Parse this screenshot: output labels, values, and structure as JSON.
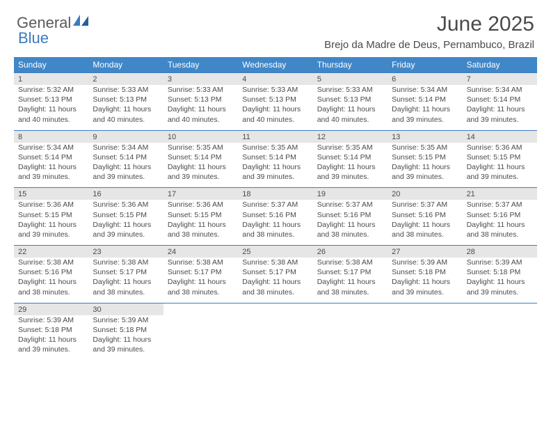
{
  "logo": {
    "part1": "General",
    "part2": "Blue"
  },
  "title": "June 2025",
  "subtitle": "Brejo da Madre de Deus, Pernambuco, Brazil",
  "colors": {
    "header_bg": "#4087c8",
    "header_text": "#ffffff",
    "cell_border": "#3b7bbf",
    "daynum_bg": "#e6e6e6",
    "body_text": "#4a4a4a",
    "logo_gray": "#5a5a5a",
    "logo_blue": "#3b7bbf",
    "background": "#ffffff"
  },
  "layout": {
    "columns": 7,
    "rows": 5,
    "header_fontsize": 12,
    "daynum_fontsize": 11,
    "body_fontsize": 10.5
  },
  "weekdays": [
    "Sunday",
    "Monday",
    "Tuesday",
    "Wednesday",
    "Thursday",
    "Friday",
    "Saturday"
  ],
  "days": [
    {
      "n": "1",
      "sunrise": "Sunrise: 5:32 AM",
      "sunset": "Sunset: 5:13 PM",
      "daylight": "Daylight: 11 hours and 40 minutes."
    },
    {
      "n": "2",
      "sunrise": "Sunrise: 5:33 AM",
      "sunset": "Sunset: 5:13 PM",
      "daylight": "Daylight: 11 hours and 40 minutes."
    },
    {
      "n": "3",
      "sunrise": "Sunrise: 5:33 AM",
      "sunset": "Sunset: 5:13 PM",
      "daylight": "Daylight: 11 hours and 40 minutes."
    },
    {
      "n": "4",
      "sunrise": "Sunrise: 5:33 AM",
      "sunset": "Sunset: 5:13 PM",
      "daylight": "Daylight: 11 hours and 40 minutes."
    },
    {
      "n": "5",
      "sunrise": "Sunrise: 5:33 AM",
      "sunset": "Sunset: 5:13 PM",
      "daylight": "Daylight: 11 hours and 40 minutes."
    },
    {
      "n": "6",
      "sunrise": "Sunrise: 5:34 AM",
      "sunset": "Sunset: 5:14 PM",
      "daylight": "Daylight: 11 hours and 39 minutes."
    },
    {
      "n": "7",
      "sunrise": "Sunrise: 5:34 AM",
      "sunset": "Sunset: 5:14 PM",
      "daylight": "Daylight: 11 hours and 39 minutes."
    },
    {
      "n": "8",
      "sunrise": "Sunrise: 5:34 AM",
      "sunset": "Sunset: 5:14 PM",
      "daylight": "Daylight: 11 hours and 39 minutes."
    },
    {
      "n": "9",
      "sunrise": "Sunrise: 5:34 AM",
      "sunset": "Sunset: 5:14 PM",
      "daylight": "Daylight: 11 hours and 39 minutes."
    },
    {
      "n": "10",
      "sunrise": "Sunrise: 5:35 AM",
      "sunset": "Sunset: 5:14 PM",
      "daylight": "Daylight: 11 hours and 39 minutes."
    },
    {
      "n": "11",
      "sunrise": "Sunrise: 5:35 AM",
      "sunset": "Sunset: 5:14 PM",
      "daylight": "Daylight: 11 hours and 39 minutes."
    },
    {
      "n": "12",
      "sunrise": "Sunrise: 5:35 AM",
      "sunset": "Sunset: 5:14 PM",
      "daylight": "Daylight: 11 hours and 39 minutes."
    },
    {
      "n": "13",
      "sunrise": "Sunrise: 5:35 AM",
      "sunset": "Sunset: 5:15 PM",
      "daylight": "Daylight: 11 hours and 39 minutes."
    },
    {
      "n": "14",
      "sunrise": "Sunrise: 5:36 AM",
      "sunset": "Sunset: 5:15 PM",
      "daylight": "Daylight: 11 hours and 39 minutes."
    },
    {
      "n": "15",
      "sunrise": "Sunrise: 5:36 AM",
      "sunset": "Sunset: 5:15 PM",
      "daylight": "Daylight: 11 hours and 39 minutes."
    },
    {
      "n": "16",
      "sunrise": "Sunrise: 5:36 AM",
      "sunset": "Sunset: 5:15 PM",
      "daylight": "Daylight: 11 hours and 39 minutes."
    },
    {
      "n": "17",
      "sunrise": "Sunrise: 5:36 AM",
      "sunset": "Sunset: 5:15 PM",
      "daylight": "Daylight: 11 hours and 38 minutes."
    },
    {
      "n": "18",
      "sunrise": "Sunrise: 5:37 AM",
      "sunset": "Sunset: 5:16 PM",
      "daylight": "Daylight: 11 hours and 38 minutes."
    },
    {
      "n": "19",
      "sunrise": "Sunrise: 5:37 AM",
      "sunset": "Sunset: 5:16 PM",
      "daylight": "Daylight: 11 hours and 38 minutes."
    },
    {
      "n": "20",
      "sunrise": "Sunrise: 5:37 AM",
      "sunset": "Sunset: 5:16 PM",
      "daylight": "Daylight: 11 hours and 38 minutes."
    },
    {
      "n": "21",
      "sunrise": "Sunrise: 5:37 AM",
      "sunset": "Sunset: 5:16 PM",
      "daylight": "Daylight: 11 hours and 38 minutes."
    },
    {
      "n": "22",
      "sunrise": "Sunrise: 5:38 AM",
      "sunset": "Sunset: 5:16 PM",
      "daylight": "Daylight: 11 hours and 38 minutes."
    },
    {
      "n": "23",
      "sunrise": "Sunrise: 5:38 AM",
      "sunset": "Sunset: 5:17 PM",
      "daylight": "Daylight: 11 hours and 38 minutes."
    },
    {
      "n": "24",
      "sunrise": "Sunrise: 5:38 AM",
      "sunset": "Sunset: 5:17 PM",
      "daylight": "Daylight: 11 hours and 38 minutes."
    },
    {
      "n": "25",
      "sunrise": "Sunrise: 5:38 AM",
      "sunset": "Sunset: 5:17 PM",
      "daylight": "Daylight: 11 hours and 38 minutes."
    },
    {
      "n": "26",
      "sunrise": "Sunrise: 5:38 AM",
      "sunset": "Sunset: 5:17 PM",
      "daylight": "Daylight: 11 hours and 38 minutes."
    },
    {
      "n": "27",
      "sunrise": "Sunrise: 5:39 AM",
      "sunset": "Sunset: 5:18 PM",
      "daylight": "Daylight: 11 hours and 39 minutes."
    },
    {
      "n": "28",
      "sunrise": "Sunrise: 5:39 AM",
      "sunset": "Sunset: 5:18 PM",
      "daylight": "Daylight: 11 hours and 39 minutes."
    },
    {
      "n": "29",
      "sunrise": "Sunrise: 5:39 AM",
      "sunset": "Sunset: 5:18 PM",
      "daylight": "Daylight: 11 hours and 39 minutes."
    },
    {
      "n": "30",
      "sunrise": "Sunrise: 5:39 AM",
      "sunset": "Sunset: 5:18 PM",
      "daylight": "Daylight: 11 hours and 39 minutes."
    }
  ]
}
